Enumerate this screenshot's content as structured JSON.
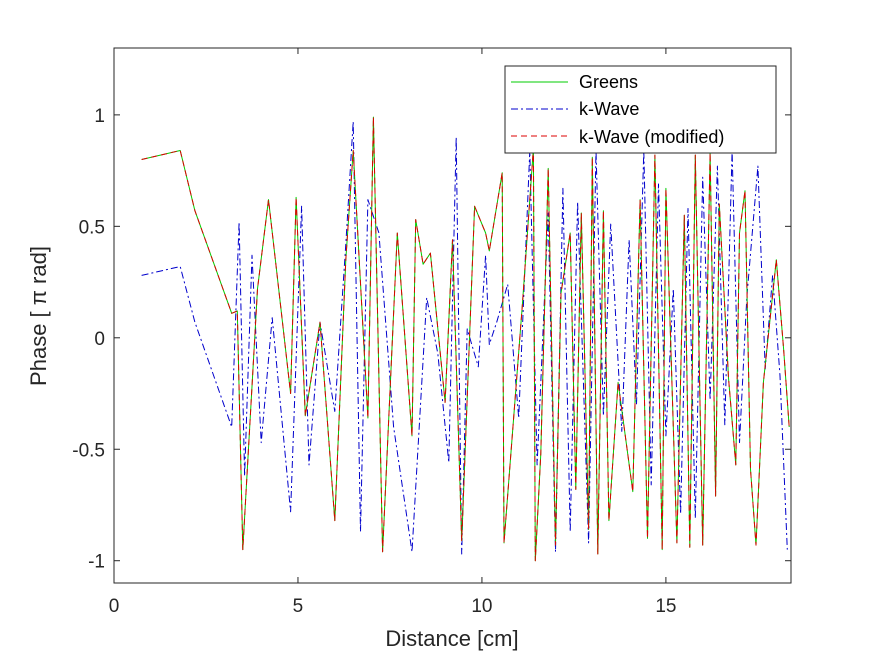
{
  "chart_data": {
    "type": "line",
    "title": "",
    "xlabel": "Distance [cm]",
    "ylabel": "Phase [ π rad]",
    "xlim": [
      0,
      18.4
    ],
    "ylim": [
      -1.1,
      1.3
    ],
    "xticks": [
      0,
      5,
      10,
      15
    ],
    "xtick_labels": [
      "0",
      "5",
      "10",
      "15"
    ],
    "yticks": [
      -1,
      -0.5,
      0,
      0.5,
      1
    ],
    "ytick_labels": [
      "-1",
      "-0.5",
      "0",
      "0.5",
      "1"
    ],
    "grid": false,
    "legend_position": "top-right",
    "series": [
      {
        "name": "Greens",
        "color": "#00cc00",
        "dash": "solid",
        "x": [
          0.75,
          1.8,
          2.2,
          3.2,
          3.35,
          3.5,
          3.9,
          4.2,
          4.8,
          4.95,
          5.2,
          5.6,
          6.0,
          6.3,
          6.5,
          6.9,
          7.05,
          7.3,
          7.7,
          8.1,
          8.2,
          8.4,
          8.6,
          9.0,
          9.2,
          9.45,
          9.8,
          10.1,
          10.2,
          10.55,
          10.6,
          11.1,
          11.4,
          11.45,
          11.6,
          11.8,
          12.0,
          12.15,
          12.4,
          12.55,
          12.7,
          12.9,
          13.0,
          13.15,
          13.3,
          13.45,
          13.7,
          14.1,
          14.3,
          14.5,
          14.7,
          14.9,
          15.0,
          15.3,
          15.5,
          15.65,
          15.8,
          16.0,
          16.2,
          16.35,
          16.45,
          16.7,
          16.9,
          17.0,
          17.15,
          17.3,
          17.45,
          17.65,
          18.0,
          18.2,
          18.35
        ],
        "values": [
          0.8,
          0.84,
          0.57,
          0.11,
          0.12,
          -0.95,
          0.22,
          0.62,
          -0.25,
          0.63,
          -0.35,
          0.07,
          -0.82,
          0.35,
          0.84,
          -0.36,
          0.99,
          -0.96,
          0.47,
          -0.44,
          0.53,
          0.33,
          0.38,
          -0.29,
          0.44,
          -0.91,
          0.59,
          0.47,
          0.39,
          0.74,
          -0.92,
          0.15,
          0.85,
          -1.0,
          -0.52,
          0.76,
          -0.93,
          0.2,
          0.47,
          -0.68,
          0.56,
          -0.86,
          0.81,
          -0.97,
          0.57,
          -0.82,
          -0.2,
          -0.69,
          0.62,
          -0.9,
          0.82,
          -0.95,
          0.67,
          -0.92,
          0.55,
          -0.94,
          0.82,
          -0.93,
          0.83,
          -0.71,
          0.6,
          -0.18,
          -0.57,
          0.47,
          0.66,
          -0.59,
          -0.93,
          -0.2,
          0.35,
          -0.05,
          -0.4
        ]
      },
      {
        "name": "k-Wave",
        "color": "#0000cc",
        "dash": "dashdot",
        "x": [
          0.75,
          1.8,
          2.2,
          3.2,
          3.4,
          3.55,
          3.75,
          4.0,
          4.3,
          4.8,
          5.1,
          5.3,
          5.6,
          6.0,
          6.3,
          6.5,
          6.7,
          6.9,
          7.2,
          7.6,
          8.1,
          8.5,
          8.8,
          9.1,
          9.3,
          9.45,
          9.6,
          9.9,
          10.1,
          10.2,
          10.4,
          10.7,
          11.0,
          11.3,
          11.5,
          11.6,
          11.8,
          12.0,
          12.2,
          12.4,
          12.6,
          12.9,
          13.1,
          13.3,
          13.5,
          13.8,
          14.0,
          14.2,
          14.4,
          14.6,
          14.8,
          15.0,
          15.2,
          15.4,
          15.6,
          15.8,
          16.0,
          16.2,
          16.4,
          16.6,
          16.8,
          17.0,
          17.2,
          17.5,
          17.7,
          17.9,
          18.1,
          18.3
        ],
        "values": [
          0.28,
          0.32,
          0.07,
          -0.4,
          0.52,
          -0.62,
          0.37,
          -0.47,
          0.09,
          -0.78,
          0.59,
          -0.57,
          0.07,
          -0.33,
          0.42,
          0.97,
          -0.87,
          0.62,
          0.47,
          -0.4,
          -0.96,
          0.18,
          -0.07,
          -0.56,
          0.9,
          -0.97,
          0.04,
          -0.13,
          0.37,
          -0.03,
          0.07,
          0.24,
          -0.36,
          0.84,
          -0.57,
          -0.2,
          0.56,
          -0.96,
          0.67,
          -0.87,
          0.61,
          -0.92,
          0.84,
          -0.35,
          0.51,
          -0.42,
          0.44,
          -0.3,
          0.84,
          -0.66,
          0.69,
          -0.44,
          0.22,
          -0.79,
          0.58,
          -0.81,
          0.72,
          -0.28,
          0.77,
          -0.39,
          0.84,
          -0.47,
          0.18,
          0.77,
          -0.14,
          0.28,
          -0.17,
          -0.95
        ]
      },
      {
        "name": "k-Wave (modified)",
        "color": "#dd0000",
        "dash": "dashed",
        "x": [
          0.75,
          1.8,
          2.2,
          3.2,
          3.35,
          3.5,
          3.9,
          4.2,
          4.8,
          4.95,
          5.2,
          5.6,
          6.0,
          6.3,
          6.5,
          6.9,
          7.05,
          7.3,
          7.7,
          8.1,
          8.2,
          8.4,
          8.6,
          9.0,
          9.2,
          9.45,
          9.8,
          10.1,
          10.2,
          10.55,
          10.6,
          11.1,
          11.4,
          11.45,
          11.6,
          11.8,
          12.0,
          12.15,
          12.4,
          12.55,
          12.7,
          12.9,
          13.0,
          13.15,
          13.3,
          13.45,
          13.7,
          14.1,
          14.3,
          14.5,
          14.7,
          14.9,
          15.0,
          15.3,
          15.5,
          15.65,
          15.8,
          16.0,
          16.2,
          16.35,
          16.45,
          16.7,
          16.9,
          17.0,
          17.15,
          17.3,
          17.45,
          17.65,
          18.0,
          18.2,
          18.35
        ],
        "values": [
          0.8,
          0.84,
          0.57,
          0.11,
          0.12,
          -0.95,
          0.22,
          0.62,
          -0.25,
          0.63,
          -0.35,
          0.07,
          -0.82,
          0.35,
          0.84,
          -0.36,
          0.99,
          -0.96,
          0.47,
          -0.44,
          0.53,
          0.33,
          0.38,
          -0.29,
          0.44,
          -0.91,
          0.59,
          0.47,
          0.39,
          0.74,
          -0.92,
          0.15,
          0.85,
          -1.0,
          -0.52,
          0.76,
          -0.93,
          0.2,
          0.47,
          -0.68,
          0.56,
          -0.86,
          0.81,
          -0.97,
          0.57,
          -0.82,
          -0.2,
          -0.69,
          0.62,
          -0.9,
          0.82,
          -0.95,
          0.67,
          -0.92,
          0.55,
          -0.94,
          0.82,
          -0.93,
          0.83,
          -0.71,
          0.6,
          -0.18,
          -0.57,
          0.47,
          0.66,
          -0.59,
          -0.93,
          -0.2,
          0.35,
          -0.05,
          -0.4
        ]
      }
    ]
  }
}
